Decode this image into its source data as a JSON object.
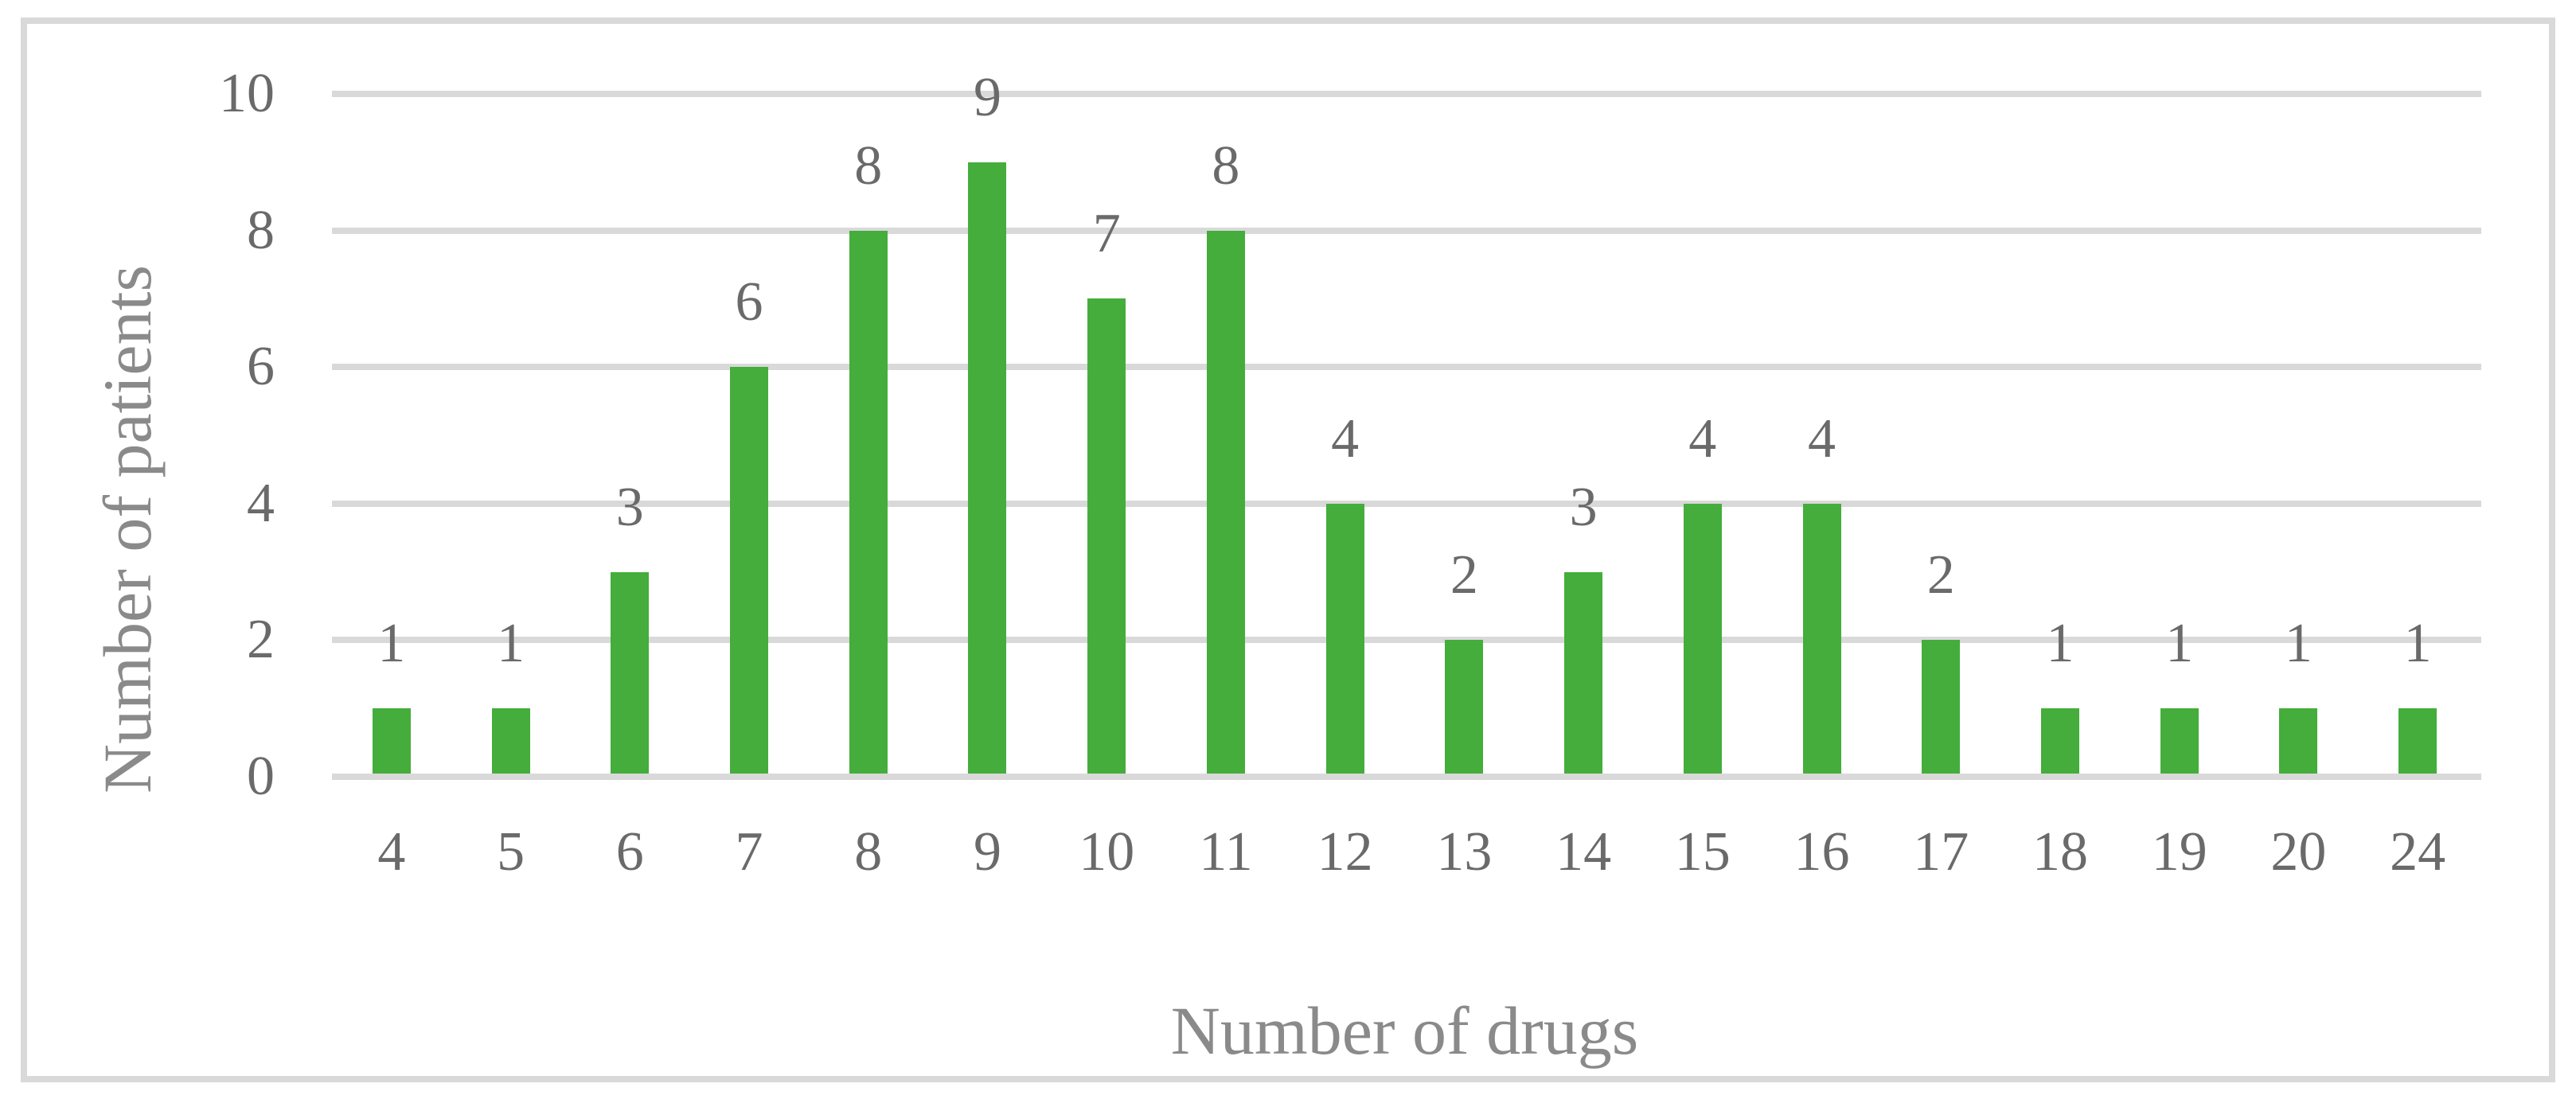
{
  "chart_data": {
    "type": "bar",
    "categories": [
      "4",
      "5",
      "6",
      "7",
      "8",
      "9",
      "10",
      "11",
      "12",
      "13",
      "14",
      "15",
      "16",
      "17",
      "18",
      "19",
      "20",
      "24"
    ],
    "values": [
      1,
      1,
      3,
      6,
      8,
      9,
      7,
      8,
      4,
      2,
      3,
      4,
      4,
      2,
      1,
      1,
      1,
      1
    ],
    "data_labels": [
      "1",
      "1",
      "3",
      "6",
      "8",
      "9",
      "7",
      "8",
      "4",
      "2",
      "3",
      "4",
      "4",
      "2",
      "1",
      "1",
      "1",
      "1"
    ],
    "title": "",
    "xlabel": "Number of drugs",
    "ylabel": "Number of patients",
    "ylim": [
      0,
      10
    ],
    "yticks": [
      "0",
      "2",
      "4",
      "6",
      "8",
      "10"
    ],
    "grid": "horizontal",
    "legend": "none",
    "bar_color": "#44ad3c",
    "gridline_color": "#d9d9d9",
    "tick_text_color": "#6a6a6a",
    "axis_title_color": "#8a8a8a",
    "frame_border_color": "#d9d9d9"
  }
}
